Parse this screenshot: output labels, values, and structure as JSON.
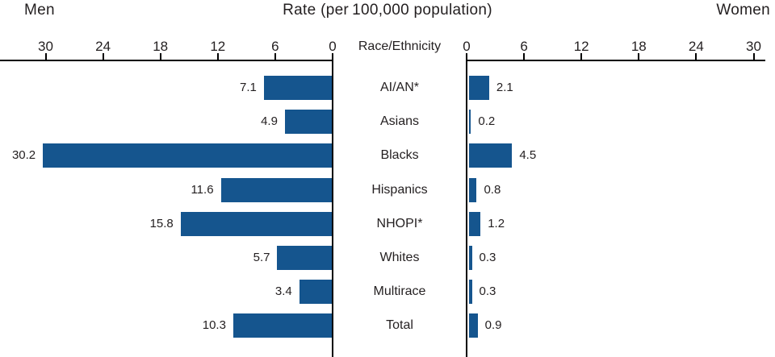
{
  "header": {
    "left_label": "Men",
    "title": "Rate (per 100,000 population)",
    "right_label": "Women"
  },
  "chart_data": {
    "type": "bar",
    "orientation": "horizontal-bilateral",
    "title": "Rate (per 100,000 population)",
    "center_axis_label": "Race/Ethnicity",
    "categories": [
      "AI/AN*",
      "Asians",
      "Blacks",
      "Hispanics",
      "NHOPI*",
      "Whites",
      "Multirace",
      "Total"
    ],
    "series": [
      {
        "name": "Men",
        "side": "left",
        "values": [
          7.1,
          4.9,
          30.2,
          11.6,
          15.8,
          5.7,
          3.4,
          10.3
        ]
      },
      {
        "name": "Women",
        "side": "right",
        "values": [
          2.1,
          0.2,
          4.5,
          0.8,
          1.2,
          0.3,
          0.3,
          0.9
        ]
      }
    ],
    "axis": {
      "left_ticks": [
        30,
        24,
        18,
        12,
        6,
        0
      ],
      "right_ticks": [
        0,
        6,
        12,
        18,
        24,
        30
      ],
      "max": 30
    },
    "bar_color": "#15558e",
    "axis_color": "#000000",
    "text_color": "#231f20"
  }
}
